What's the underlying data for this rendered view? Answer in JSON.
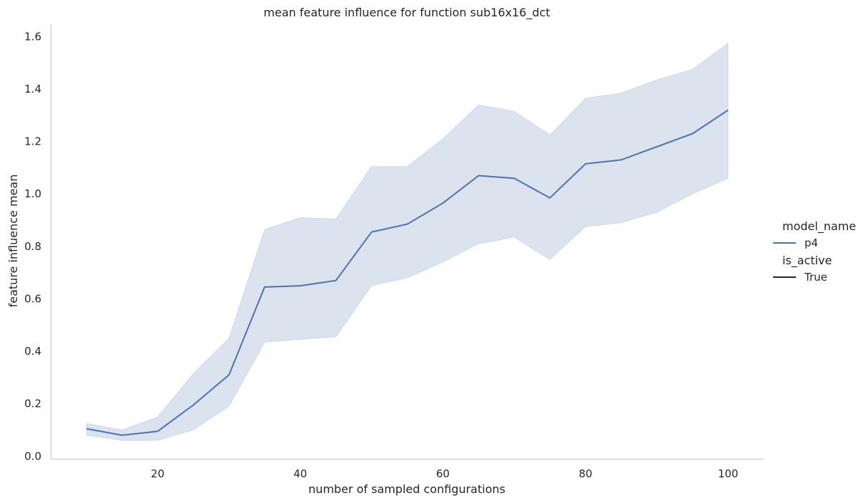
{
  "chart_data": {
    "type": "line",
    "title": "mean feature influence for function sub16x16_dct",
    "xlabel": "number of sampled configurations",
    "ylabel": "feature influence mean",
    "xlim": [
      5,
      105
    ],
    "ylim": [
      -0.01,
      1.65
    ],
    "xticks": [
      20,
      40,
      60,
      80,
      100
    ],
    "yticks": [
      0.0,
      0.2,
      0.4,
      0.6,
      0.8,
      1.0,
      1.2,
      1.4,
      1.6
    ],
    "x": [
      10,
      15,
      20,
      25,
      30,
      35,
      40,
      45,
      50,
      55,
      60,
      65,
      70,
      75,
      80,
      85,
      90,
      95,
      100
    ],
    "series": [
      {
        "name": "p4",
        "color": "#4c72b0",
        "values": [
          0.105,
          0.08,
          0.095,
          0.195,
          0.31,
          0.645,
          0.65,
          0.67,
          0.855,
          0.885,
          0.965,
          1.07,
          1.06,
          0.985,
          1.115,
          1.13,
          1.18,
          1.23,
          1.32
        ],
        "ci_lower": [
          0.08,
          0.06,
          0.06,
          0.1,
          0.19,
          0.435,
          0.445,
          0.455,
          0.65,
          0.68,
          0.74,
          0.81,
          0.835,
          0.75,
          0.875,
          0.89,
          0.93,
          1.0,
          1.06
        ],
        "ci_upper": [
          0.125,
          0.1,
          0.15,
          0.315,
          0.45,
          0.865,
          0.91,
          0.905,
          1.105,
          1.105,
          1.21,
          1.34,
          1.315,
          1.225,
          1.365,
          1.385,
          1.435,
          1.475,
          1.575
        ]
      }
    ],
    "legend": {
      "placement": "right",
      "groups": [
        {
          "title": "model_name",
          "entries": [
            {
              "label": "p4",
              "color": "#4c72b0"
            }
          ]
        },
        {
          "title": "is_active",
          "entries": [
            {
              "label": "True",
              "color": "#262626"
            }
          ]
        }
      ]
    },
    "grid": false
  }
}
